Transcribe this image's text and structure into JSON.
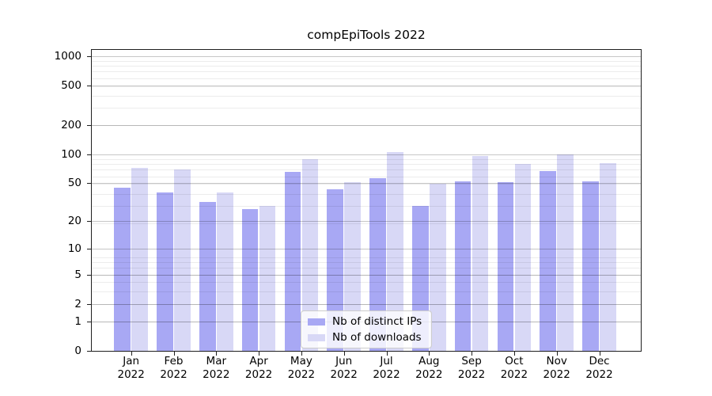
{
  "chart_data": {
    "type": "bar",
    "title": "compEpiTools 2022",
    "xlabel": "",
    "ylabel": "",
    "categories": [
      "Jan",
      "Feb",
      "Mar",
      "Apr",
      "May",
      "Jun",
      "Jul",
      "Aug",
      "Sep",
      "Oct",
      "Nov",
      "Dec"
    ],
    "year_label": "2022",
    "series": [
      {
        "name": "Nb of distinct IPs",
        "color": "#a8a8f4",
        "values": [
          45,
          40,
          32,
          27,
          66,
          43,
          56,
          29,
          52,
          51,
          67,
          52
        ]
      },
      {
        "name": "Nb of downloads",
        "color": "#d8d8f6",
        "values": [
          72,
          70,
          40,
          29,
          89,
          51,
          105,
          49,
          96,
          79,
          100,
          81
        ]
      }
    ],
    "y_ticks": [
      0,
      1,
      2,
      5,
      10,
      20,
      50,
      100,
      200,
      500,
      1000
    ],
    "scale": "log10(value+1)",
    "ylim": [
      0,
      1200
    ],
    "grid": true,
    "grid_major_color": "#c6c6c6",
    "grid_minor_color": "#ececec",
    "legend_position": "lower-center"
  }
}
